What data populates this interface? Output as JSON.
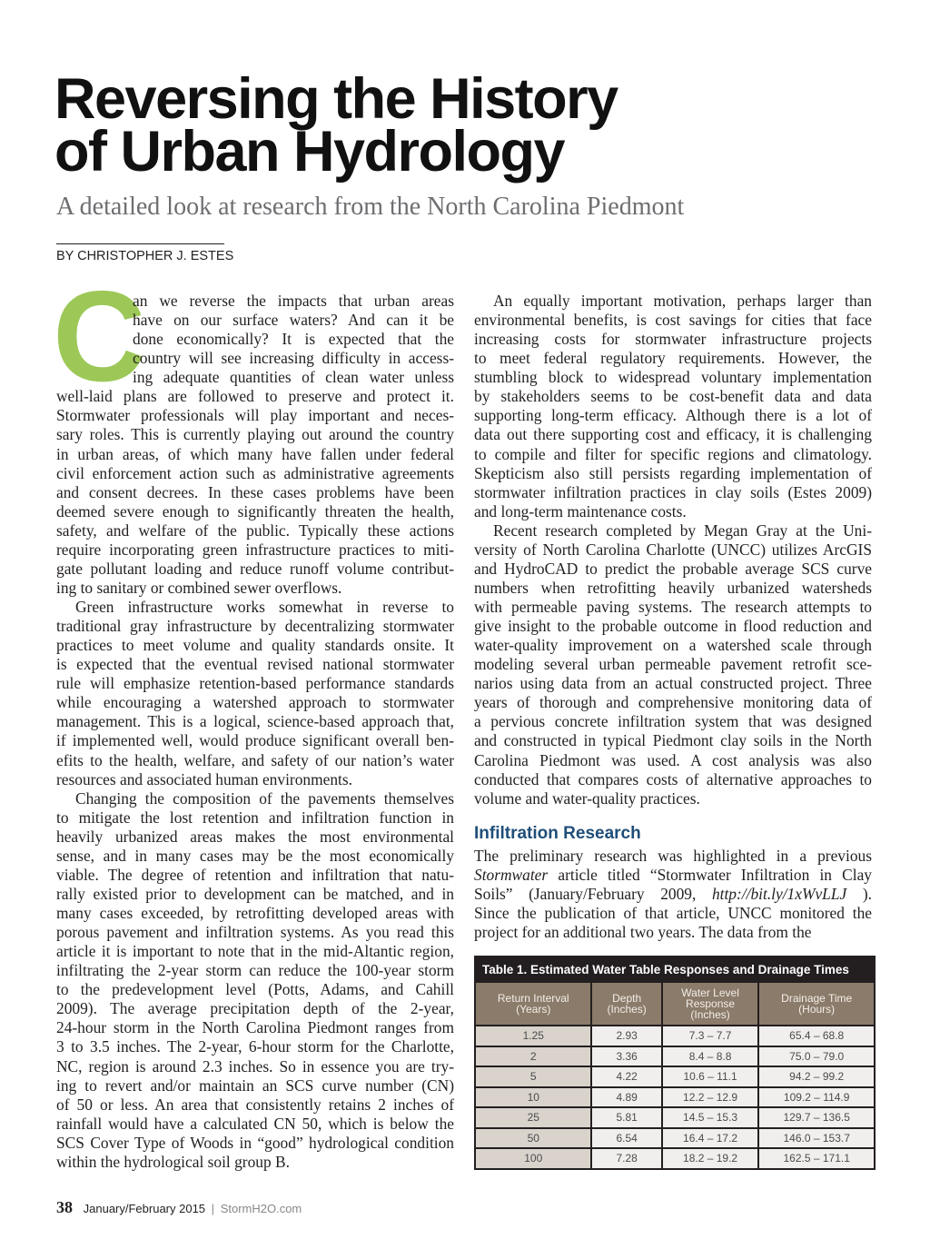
{
  "header": {
    "title_line1": "Reversing the History",
    "title_line2": "of Urban Hydrology",
    "subtitle": "A detailed look at research from the North Carolina Piedmont",
    "byline": "BY CHRISTOPHER J. ESTES"
  },
  "colors": {
    "dropcap": "#9dc858",
    "heading": "#1f4e79",
    "table_header": "#8b7b6a",
    "table_title_bg": "#231f20"
  },
  "dropcap": "C",
  "left_column": [
    [
      "an we reverse the impacts that urban areas",
      "have on our surface waters? And can it be",
      "done economically? It is expected that the",
      "country will see increasing difficulty in access-",
      "ing adequate quantities of clean water unless",
      "well-laid plans are followed to preserve and protect it.",
      "Stormwater professionals will play important and neces-",
      "sary roles. This is currently playing out around the country",
      "in urban areas, of which many have fallen under federal",
      "civil enforcement action such as administrative agreements",
      "and consent decrees. In these cases problems have been",
      "deemed severe enough to significantly threaten the health,",
      "safety, and welfare of the public. Typically these actions",
      "require incorporating green infrastructure practices to miti-",
      "gate pollutant loading and reduce runoff volume contribut-",
      "ing to sanitary or combined sewer overflows."
    ],
    [
      "Green infrastructure works somewhat in reverse to",
      "traditional gray infrastructure by decentralizing stormwater",
      "practices to meet volume and quality standards onsite. It",
      "is expected that the eventual revised national stormwater",
      "rule will emphasize retention-based performance standards",
      "while encouraging a watershed approach to stormwater",
      "management. This is a logical, science-based approach that,",
      "if implemented well, would produce significant overall ben-",
      "efits to the health, welfare, and safety of our nation’s water",
      "resources and associated human environments."
    ],
    [
      "Changing the composition of the pavements themselves",
      "to mitigate the lost retention and infiltration function in",
      "heavily urbanized areas makes the most environmental",
      "sense, and in many cases may be the most economically",
      "viable. The degree of retention and infiltration that natu-",
      "rally existed prior to development can be matched, and in",
      "many cases exceeded, by retrofitting developed areas with",
      "porous pavement and infiltration systems. As you read this",
      "article it is important to note that in the mid-Altantic region,",
      "infiltrating the 2-year storm can reduce the 100-year storm",
      "to the predevelopment level (Potts, Adams, and Cahill",
      "2009). The average precipitation depth of the 2-year,",
      "24-hour storm in the North Carolina Piedmont ranges from",
      "3 to 3.5 inches. The 2-year, 6-hour storm for the Charlotte,",
      "NC, region is around 2.3 inches. So in essence you are try-",
      "ing to revert and/or maintain an SCS curve number (CN)",
      "of 50 or less. An area that consistently retains 2 inches of",
      "rainfall would have a calculated CN 50, which is below the",
      "SCS Cover Type of Woods in “good” hydrological condition",
      "within the hydrological soil group B."
    ]
  ],
  "right_column": [
    [
      "An equally important motivation, perhaps larger than",
      "environmental benefits, is cost savings for cities that face",
      "increasing costs for stormwater infrastructure projects",
      "to meet federal regulatory requirements. However, the",
      "stumbling block to widespread voluntary implementation",
      "by stakeholders seems to be cost-benefit data and data",
      "supporting long-term efficacy. Although there is a lot of",
      "data out there supporting cost and efficacy, it is challenging",
      "to compile and filter for specific regions and climatology.",
      "Skepticism also still persists regarding implementation of",
      "stormwater infiltration practices in clay soils (Estes 2009)",
      "and long-term maintenance costs."
    ],
    [
      "Recent research completed by Megan Gray at the Uni-",
      "versity of North Carolina Charlotte (UNCC) utilizes ArcGIS",
      "and HydroCAD to predict the probable average SCS curve",
      "numbers when retrofitting heavily urbanized watersheds",
      "with permeable paving systems. The research attempts to",
      "give insight to the probable outcome in flood reduction and",
      "water-quality improvement on a watershed scale through",
      "modeling several urban permeable pavement retrofit sce-",
      "narios using data from an actual constructed project. Three",
      "years of thorough and comprehensive monitoring data of",
      "a pervious concrete infiltration system that was designed",
      "and constructed in typical Piedmont clay soils in the North",
      "Carolina Piedmont was used. A cost analysis was also",
      "conducted that compares costs of alternative approaches to",
      "volume and water-quality practices."
    ]
  ],
  "section": {
    "heading": "Infiltration Research",
    "line1": "The preliminary research was highlighted in a previous",
    "line2_italic": "Stormwater",
    "line2_rest": " article titled “Stormwater Infiltration in Clay",
    "line3_start": "Soils” (January/February 2009, ",
    "line3_url": "http://bit.ly/1xWvLLJ",
    "line3_end": " ).",
    "line4": "Since the publication of that article, UNCC monitored the",
    "line5": "project for an additional two years. The data from the"
  },
  "table": {
    "title": "Table 1. Estimated Water Table Responses and Drainage Times",
    "headers": [
      [
        "Return Interval",
        "(Years)"
      ],
      [
        "Depth",
        "(Inches)"
      ],
      [
        "Water Level",
        "Response",
        "(Inches)"
      ],
      [
        "Drainage Time",
        "(Hours)"
      ]
    ],
    "rows": [
      [
        "1.25",
        "2.93",
        "7.3 – 7.7",
        "65.4 – 68.8"
      ],
      [
        "2",
        "3.36",
        "8.4 – 8.8",
        "75.0 – 79.0"
      ],
      [
        "5",
        "4.22",
        "10.6 – 11.1",
        "94.2 – 99.2"
      ],
      [
        "10",
        "4.89",
        "12.2 – 12.9",
        "109.2 – 114.9"
      ],
      [
        "25",
        "5.81",
        "14.5 – 15.3",
        "129.7 – 136.5"
      ],
      [
        "50",
        "6.54",
        "16.4 – 17.2",
        "146.0 – 153.7"
      ],
      [
        "100",
        "7.28",
        "18.2 – 19.2",
        "162.5 – 171.1"
      ]
    ]
  },
  "footer": {
    "page_number": "38",
    "issue": "January/February 2015",
    "separator": "|",
    "site": "StormH2O.com"
  }
}
